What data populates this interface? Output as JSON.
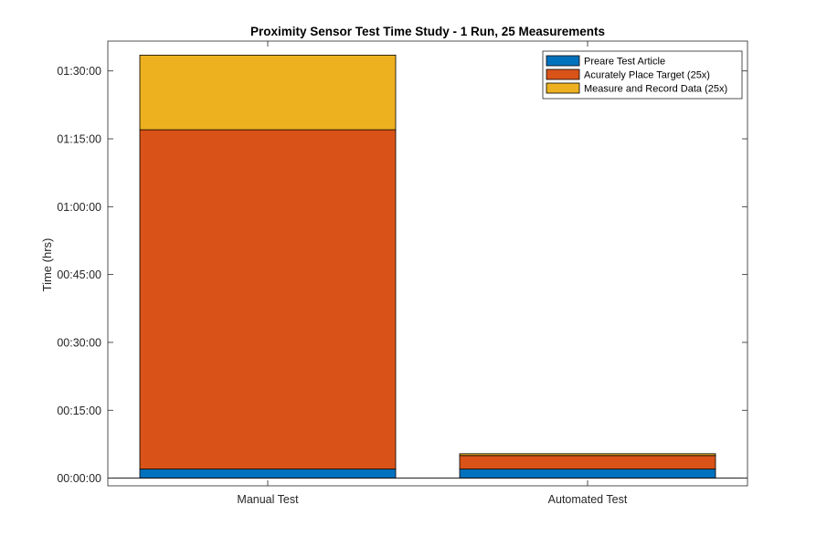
{
  "chart_data": {
    "type": "bar",
    "stacked": true,
    "title": "Proximity Sensor Test Time Study - 1 Run, 25 Measurements",
    "xlabel": "",
    "ylabel": "Time (hrs)",
    "categories": [
      "Manual Test",
      "Automated Test"
    ],
    "y_unit": "minutes",
    "ylim": [
      -1.7,
      96.6
    ],
    "yticks": [
      0,
      15,
      30,
      45,
      60,
      75,
      90
    ],
    "ytick_labels": [
      "00:00:00",
      "00:15:00",
      "00:30:00",
      "00:45:00",
      "01:00:00",
      "01:15:00",
      "01:30:00"
    ],
    "series": [
      {
        "name": "Preare Test Article",
        "values": [
          2,
          2
        ],
        "color": "#0072BD"
      },
      {
        "name": "Acurately Place Target (25x)",
        "values": [
          75,
          3
        ],
        "color": "#D95319"
      },
      {
        "name": "Measure and Record Data (25x)",
        "values": [
          16.5,
          0.4
        ],
        "color": "#EDB120"
      }
    ],
    "legend_position": "top-right",
    "grid": false
  }
}
